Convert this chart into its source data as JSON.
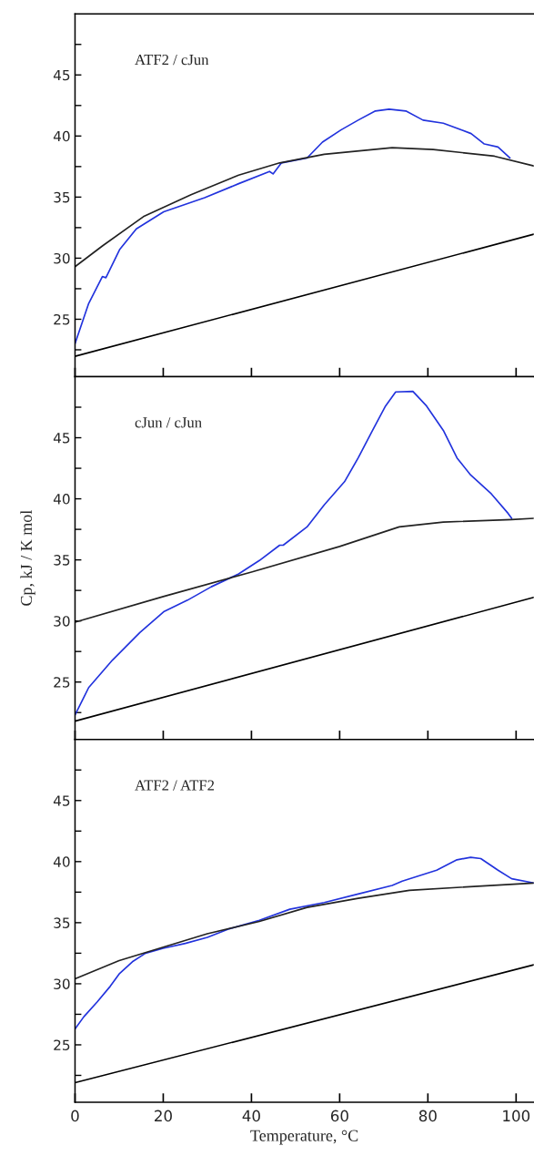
{
  "chart_data": [
    {
      "type": "line",
      "annotations": [
        "ATF2 / cJun"
      ],
      "xlim": [
        0,
        104
      ],
      "ylim": [
        20.3,
        50
      ],
      "xticks": [
        0,
        20,
        40,
        60,
        80,
        100
      ],
      "yticks": [
        {
          "value": 22.5,
          "label": null
        },
        25,
        {
          "value": 27.5,
          "label": null
        },
        30,
        {
          "value": 32.5,
          "label": null
        },
        35,
        {
          "value": 37.5,
          "label": null
        },
        40,
        {
          "value": 42.5,
          "label": null
        },
        45,
        {
          "value": 47.5,
          "label": null
        }
      ],
      "tick_labels": "y",
      "series": [
        {
          "color": "#2233dd",
          "x": [
            0,
            3.1,
            6.2,
            7.0,
            10.1,
            13.9,
            20.1,
            29.4,
            37.1,
            44.1,
            44.9,
            46.8,
            52.6,
            56.1,
            60.3,
            64.2,
            68.1,
            71.2,
            75,
            78.9,
            83.5,
            89.8,
            92.8,
            95.9,
            98.6
          ],
          "values": [
            23.0,
            26.3,
            28.5,
            28.4,
            30.7,
            32.4,
            33.8,
            34.95,
            36.1,
            37.1,
            36.9,
            37.8,
            38.2,
            39.5,
            40.5,
            41.3,
            42.05,
            42.2,
            42.05,
            41.3,
            41.05,
            40.2,
            39.35,
            39.1,
            38.2
          ]
        },
        {
          "color": "#222222",
          "x": [
            0,
            6.2,
            15.5,
            26.3,
            37.1,
            46.4,
            56.5,
            71.9,
            81.2,
            95.1,
            104
          ],
          "values": [
            29.3,
            31.0,
            33.4,
            35.2,
            36.8,
            37.8,
            38.5,
            39.05,
            38.9,
            38.35,
            37.55
          ]
        },
        {
          "color": "#000000",
          "x": [
            0,
            104
          ],
          "values": [
            21.97,
            31.96
          ]
        }
      ]
    },
    {
      "type": "line",
      "annotations": [
        "cJun / cJun"
      ],
      "ylabel": "Cp, kJ / K mol",
      "xlim": [
        0,
        104
      ],
      "ylim": [
        20.3,
        50
      ],
      "xticks": [
        0,
        20,
        40,
        60,
        80,
        100
      ],
      "yticks": [
        {
          "value": 22.5,
          "label": null
        },
        25,
        {
          "value": 27.5,
          "label": null
        },
        30,
        {
          "value": 32.5,
          "label": null
        },
        35,
        {
          "value": 37.5,
          "label": null
        },
        40,
        {
          "value": 42.5,
          "label": null
        },
        45,
        {
          "value": 47.5,
          "label": null
        }
      ],
      "tick_labels": "y",
      "series": [
        {
          "color": "#2233dd",
          "x": [
            0,
            3.1,
            8.5,
            14.7,
            20.1,
            25.5,
            30.9,
            37.1,
            41.8,
            46.4,
            47.2,
            52.6,
            56.5,
            61.1,
            64.2,
            67.3,
            70.4,
            72.7,
            76.6,
            79.7,
            83.5,
            86.6,
            89.7,
            94.4,
            98.2,
            99
          ],
          "values": [
            22.3,
            24.55,
            26.8,
            29.05,
            30.75,
            31.7,
            32.8,
            33.85,
            34.95,
            36.2,
            36.2,
            37.7,
            39.5,
            41.4,
            43.35,
            45.5,
            47.6,
            48.75,
            48.8,
            47.6,
            45.6,
            43.35,
            41.95,
            40.4,
            38.8,
            38.4
          ]
        },
        {
          "color": "#222222",
          "x": [
            0,
            20,
            40,
            60,
            73.5,
            83.5,
            99,
            104
          ],
          "values": [
            29.9,
            32.0,
            34.0,
            36.1,
            37.7,
            38.1,
            38.3,
            38.4
          ]
        },
        {
          "color": "#000000",
          "x": [
            0,
            104
          ],
          "values": [
            21.8,
            31.93
          ]
        }
      ]
    },
    {
      "type": "line",
      "annotations": [
        "ATF2 / ATF2"
      ],
      "xlabel": "Temperature, °C",
      "xlim": [
        0,
        104
      ],
      "ylim": [
        20.3,
        50
      ],
      "xticks": [
        0,
        20,
        40,
        60,
        80,
        100
      ],
      "yticks": [
        {
          "value": 22.5,
          "label": null
        },
        25,
        {
          "value": 27.5,
          "label": null
        },
        30,
        {
          "value": 32.5,
          "label": null
        },
        35,
        {
          "value": 37.5,
          "label": null
        },
        40,
        {
          "value": 42.5,
          "label": null
        },
        45,
        {
          "value": 47.5,
          "label": null
        }
      ],
      "series": [
        {
          "color": "#2233dd",
          "x": [
            0,
            2,
            5,
            8,
            10,
            13,
            16,
            20,
            25,
            30,
            35,
            41.8,
            48.7,
            56.5,
            64.2,
            71.9,
            74.2,
            82,
            86.6,
            89.7,
            92,
            95.9,
            99,
            104
          ],
          "values": [
            26.3,
            27.3,
            28.5,
            29.8,
            30.8,
            31.8,
            32.5,
            32.9,
            33.3,
            33.8,
            34.5,
            35.2,
            36.1,
            36.65,
            37.35,
            38.05,
            38.4,
            39.3,
            40.15,
            40.35,
            40.25,
            39.3,
            38.6,
            38.25
          ]
        },
        {
          "color": "#222222",
          "x": [
            0,
            10,
            20,
            30,
            41.8,
            52.6,
            64.2,
            75.8,
            87.4,
            104
          ],
          "values": [
            30.4,
            31.9,
            33.0,
            34.1,
            35.1,
            36.25,
            37.0,
            37.65,
            37.9,
            38.25
          ]
        },
        {
          "color": "#000000",
          "x": [
            0,
            104
          ],
          "values": [
            21.9,
            31.55
          ]
        }
      ]
    }
  ]
}
